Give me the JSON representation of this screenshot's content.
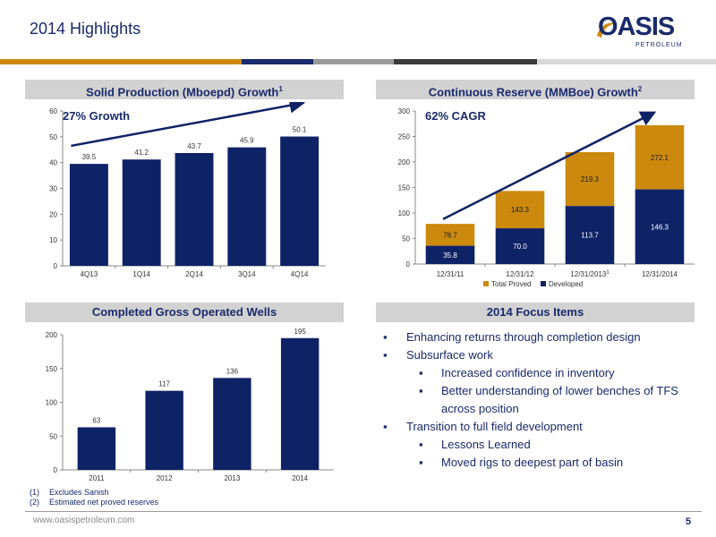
{
  "title": "2014 Highlights",
  "logo": {
    "text": "OASIS",
    "subtext": "PETROLEUM"
  },
  "colors": {
    "navy": "#0e2266",
    "gold": "#cb8a0e",
    "header_bg": "#d2d2d2",
    "title": "#1a2a6c"
  },
  "panels": {
    "production": {
      "title": "Solid Production (Mboepd) Growth",
      "sup": "1",
      "annotation": "27% Growth"
    },
    "reserves": {
      "title": "Continuous Reserve (MMBoe) Growth",
      "sup": "2",
      "annotation": "62% CAGR",
      "tick_sup": "1"
    },
    "wells": {
      "title": "Completed Gross Operated Wells"
    },
    "focus": {
      "title": "2014 Focus Items"
    }
  },
  "chart_data": [
    {
      "type": "bar",
      "categories": [
        "4Q13",
        "1Q14",
        "2Q14",
        "3Q14",
        "4Q14"
      ],
      "values": [
        39.5,
        41.2,
        43.7,
        45.9,
        50.1
      ],
      "labels": [
        "39.5",
        "41.2",
        "43.7",
        "45.9",
        "50.1"
      ],
      "ylim": [
        0,
        60
      ],
      "yticks": [
        "0",
        "10",
        "20",
        "30",
        "40",
        "50",
        "60"
      ],
      "annotation": "27% Growth",
      "trend_arrow": true,
      "grid": false
    },
    {
      "type": "bar",
      "stacked": true,
      "categories": [
        "12/31/11",
        "12/31/12",
        "12/31/2013",
        "12/31/2014"
      ],
      "series": [
        {
          "name": "Developed",
          "values": [
            35.8,
            70.0,
            113.7,
            146.3
          ],
          "labels": [
            "35.8",
            "70.0",
            "113.7",
            "146.3"
          ]
        },
        {
          "name": "Total Proved",
          "totals": [
            78.7,
            143.3,
            219.3,
            272.1
          ],
          "labels": [
            "78.7",
            "143.3",
            "219.3",
            "272.1"
          ]
        }
      ],
      "ylim": [
        0,
        300
      ],
      "yticks": [
        "0",
        "50",
        "100",
        "150",
        "200",
        "250",
        "300"
      ],
      "legend": [
        "Total Proved",
        "Developed"
      ],
      "legend_position": "bottom",
      "annotation": "62% CAGR",
      "trend_arrow": true,
      "grid": false
    },
    {
      "type": "bar",
      "categories": [
        "2011",
        "2012",
        "2013",
        "2014"
      ],
      "values": [
        63,
        117,
        136,
        195
      ],
      "labels": [
        "63",
        "117",
        "136",
        "195"
      ],
      "ylim": [
        0,
        200
      ],
      "yticks": [
        "0",
        "50",
        "100",
        "150",
        "200"
      ],
      "grid": false
    }
  ],
  "focus_items": {
    "i1": "Enhancing returns through completion design",
    "i2": "Subsurface work",
    "i2a": "Increased confidence in inventory",
    "i2b": "Better understanding of lower benches of TFS across position",
    "i3": "Transition to full field development",
    "i3a": "Lessons Learned",
    "i3b": "Moved rigs to deepest part of basin"
  },
  "footnotes": {
    "n1_num": "(1)",
    "n1_text": "Excludes Sanish",
    "n2_num": "(2)",
    "n2_text": "Estimated net proved reserves"
  },
  "footer": {
    "url": "www.oasispetroleum.com",
    "page": "5"
  }
}
